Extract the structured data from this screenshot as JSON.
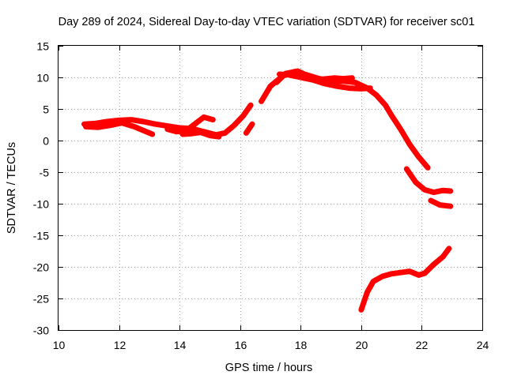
{
  "chart_data": {
    "type": "scatter",
    "title": "Day 289 of 2024, Sidereal Day-to-day VTEC variation (SDTVAR) for receiver sc01",
    "xlabel": "GPS time / hours",
    "ylabel": "SDTVAR / TECUs",
    "xlim": [
      10,
      24
    ],
    "ylim": [
      -30,
      15
    ],
    "xticks": [
      "10",
      "12",
      "14",
      "16",
      "18",
      "20",
      "22",
      "24"
    ],
    "yticks": [
      "15",
      "10",
      "5",
      "0",
      "-5",
      "-10",
      "-15",
      "-20",
      "-25",
      "-30"
    ],
    "grid": true,
    "color": "#ff0000",
    "series": [
      {
        "name": "track-1",
        "points": [
          [
            10.85,
            2.6
          ],
          [
            11.2,
            2.7
          ],
          [
            11.6,
            3.0
          ],
          [
            12.0,
            3.2
          ],
          [
            12.4,
            3.3
          ],
          [
            12.8,
            3.0
          ],
          [
            13.2,
            2.6
          ],
          [
            13.6,
            2.3
          ],
          [
            14.0,
            2.0
          ],
          [
            14.4,
            1.9
          ],
          [
            14.8,
            1.4
          ],
          [
            15.2,
            0.9
          ],
          [
            15.5,
            1.2
          ],
          [
            15.8,
            2.4
          ],
          [
            16.1,
            3.9
          ],
          [
            16.35,
            5.6
          ]
        ]
      },
      {
        "name": "track-2",
        "points": [
          [
            10.9,
            2.2
          ],
          [
            11.3,
            2.1
          ],
          [
            11.7,
            2.4
          ],
          [
            12.1,
            2.8
          ],
          [
            12.5,
            2.2
          ],
          [
            12.9,
            1.4
          ],
          [
            13.1,
            1.0
          ]
        ]
      },
      {
        "name": "track-3",
        "points": [
          [
            13.6,
            1.8
          ],
          [
            13.9,
            1.4
          ],
          [
            14.2,
            1.5
          ],
          [
            14.5,
            2.6
          ],
          [
            14.8,
            3.7
          ],
          [
            15.1,
            3.3
          ]
        ]
      },
      {
        "name": "track-4",
        "points": [
          [
            14.1,
            1.0
          ],
          [
            14.4,
            1.1
          ],
          [
            14.7,
            1.3
          ],
          [
            15.0,
            0.8
          ],
          [
            15.3,
            0.6
          ]
        ]
      },
      {
        "name": "track-5",
        "points": [
          [
            16.2,
            1.2
          ],
          [
            16.4,
            2.6
          ]
        ]
      },
      {
        "name": "track-6",
        "points": [
          [
            16.7,
            6.2
          ],
          [
            17.0,
            8.6
          ],
          [
            17.4,
            10.2
          ],
          [
            17.8,
            10.9
          ],
          [
            18.2,
            10.4
          ],
          [
            18.6,
            9.8
          ],
          [
            19.0,
            9.4
          ],
          [
            19.4,
            9.4
          ],
          [
            19.8,
            9.2
          ],
          [
            20.2,
            8.3
          ],
          [
            20.5,
            7.2
          ],
          [
            20.8,
            5.6
          ],
          [
            21.0,
            4.0
          ],
          [
            21.3,
            1.8
          ],
          [
            21.6,
            -0.6
          ],
          [
            21.9,
            -2.6
          ],
          [
            22.2,
            -4.3
          ]
        ]
      },
      {
        "name": "track-7",
        "points": [
          [
            17.3,
            10.5
          ],
          [
            17.6,
            10.4
          ],
          [
            18.0,
            10.0
          ],
          [
            18.4,
            9.6
          ],
          [
            18.8,
            9.0
          ],
          [
            19.2,
            8.6
          ],
          [
            19.6,
            8.3
          ],
          [
            20.0,
            8.2
          ],
          [
            20.3,
            8.3
          ]
        ]
      },
      {
        "name": "track-8",
        "points": [
          [
            17.2,
            9.2
          ],
          [
            17.5,
            10.6
          ],
          [
            17.9,
            11.0
          ],
          [
            18.3,
            10.1
          ],
          [
            18.7,
            9.7
          ],
          [
            19.1,
            9.9
          ],
          [
            19.4,
            9.8
          ],
          [
            19.7,
            9.9
          ]
        ]
      },
      {
        "name": "track-9",
        "points": [
          [
            21.5,
            -4.5
          ],
          [
            21.8,
            -6.6
          ],
          [
            22.1,
            -7.8
          ],
          [
            22.4,
            -8.2
          ],
          [
            22.7,
            -7.9
          ],
          [
            22.95,
            -8.0
          ]
        ]
      },
      {
        "name": "track-10",
        "points": [
          [
            22.3,
            -9.5
          ],
          [
            22.6,
            -10.2
          ],
          [
            22.95,
            -10.4
          ]
        ]
      },
      {
        "name": "track-11",
        "points": [
          [
            20.0,
            -26.8
          ],
          [
            20.2,
            -24.0
          ],
          [
            20.4,
            -22.3
          ],
          [
            20.7,
            -21.5
          ],
          [
            21.0,
            -21.1
          ],
          [
            21.3,
            -20.9
          ],
          [
            21.6,
            -20.7
          ],
          [
            21.9,
            -21.3
          ],
          [
            22.1,
            -21.0
          ],
          [
            22.4,
            -19.6
          ],
          [
            22.7,
            -18.4
          ],
          [
            22.9,
            -17.1
          ]
        ]
      }
    ]
  }
}
